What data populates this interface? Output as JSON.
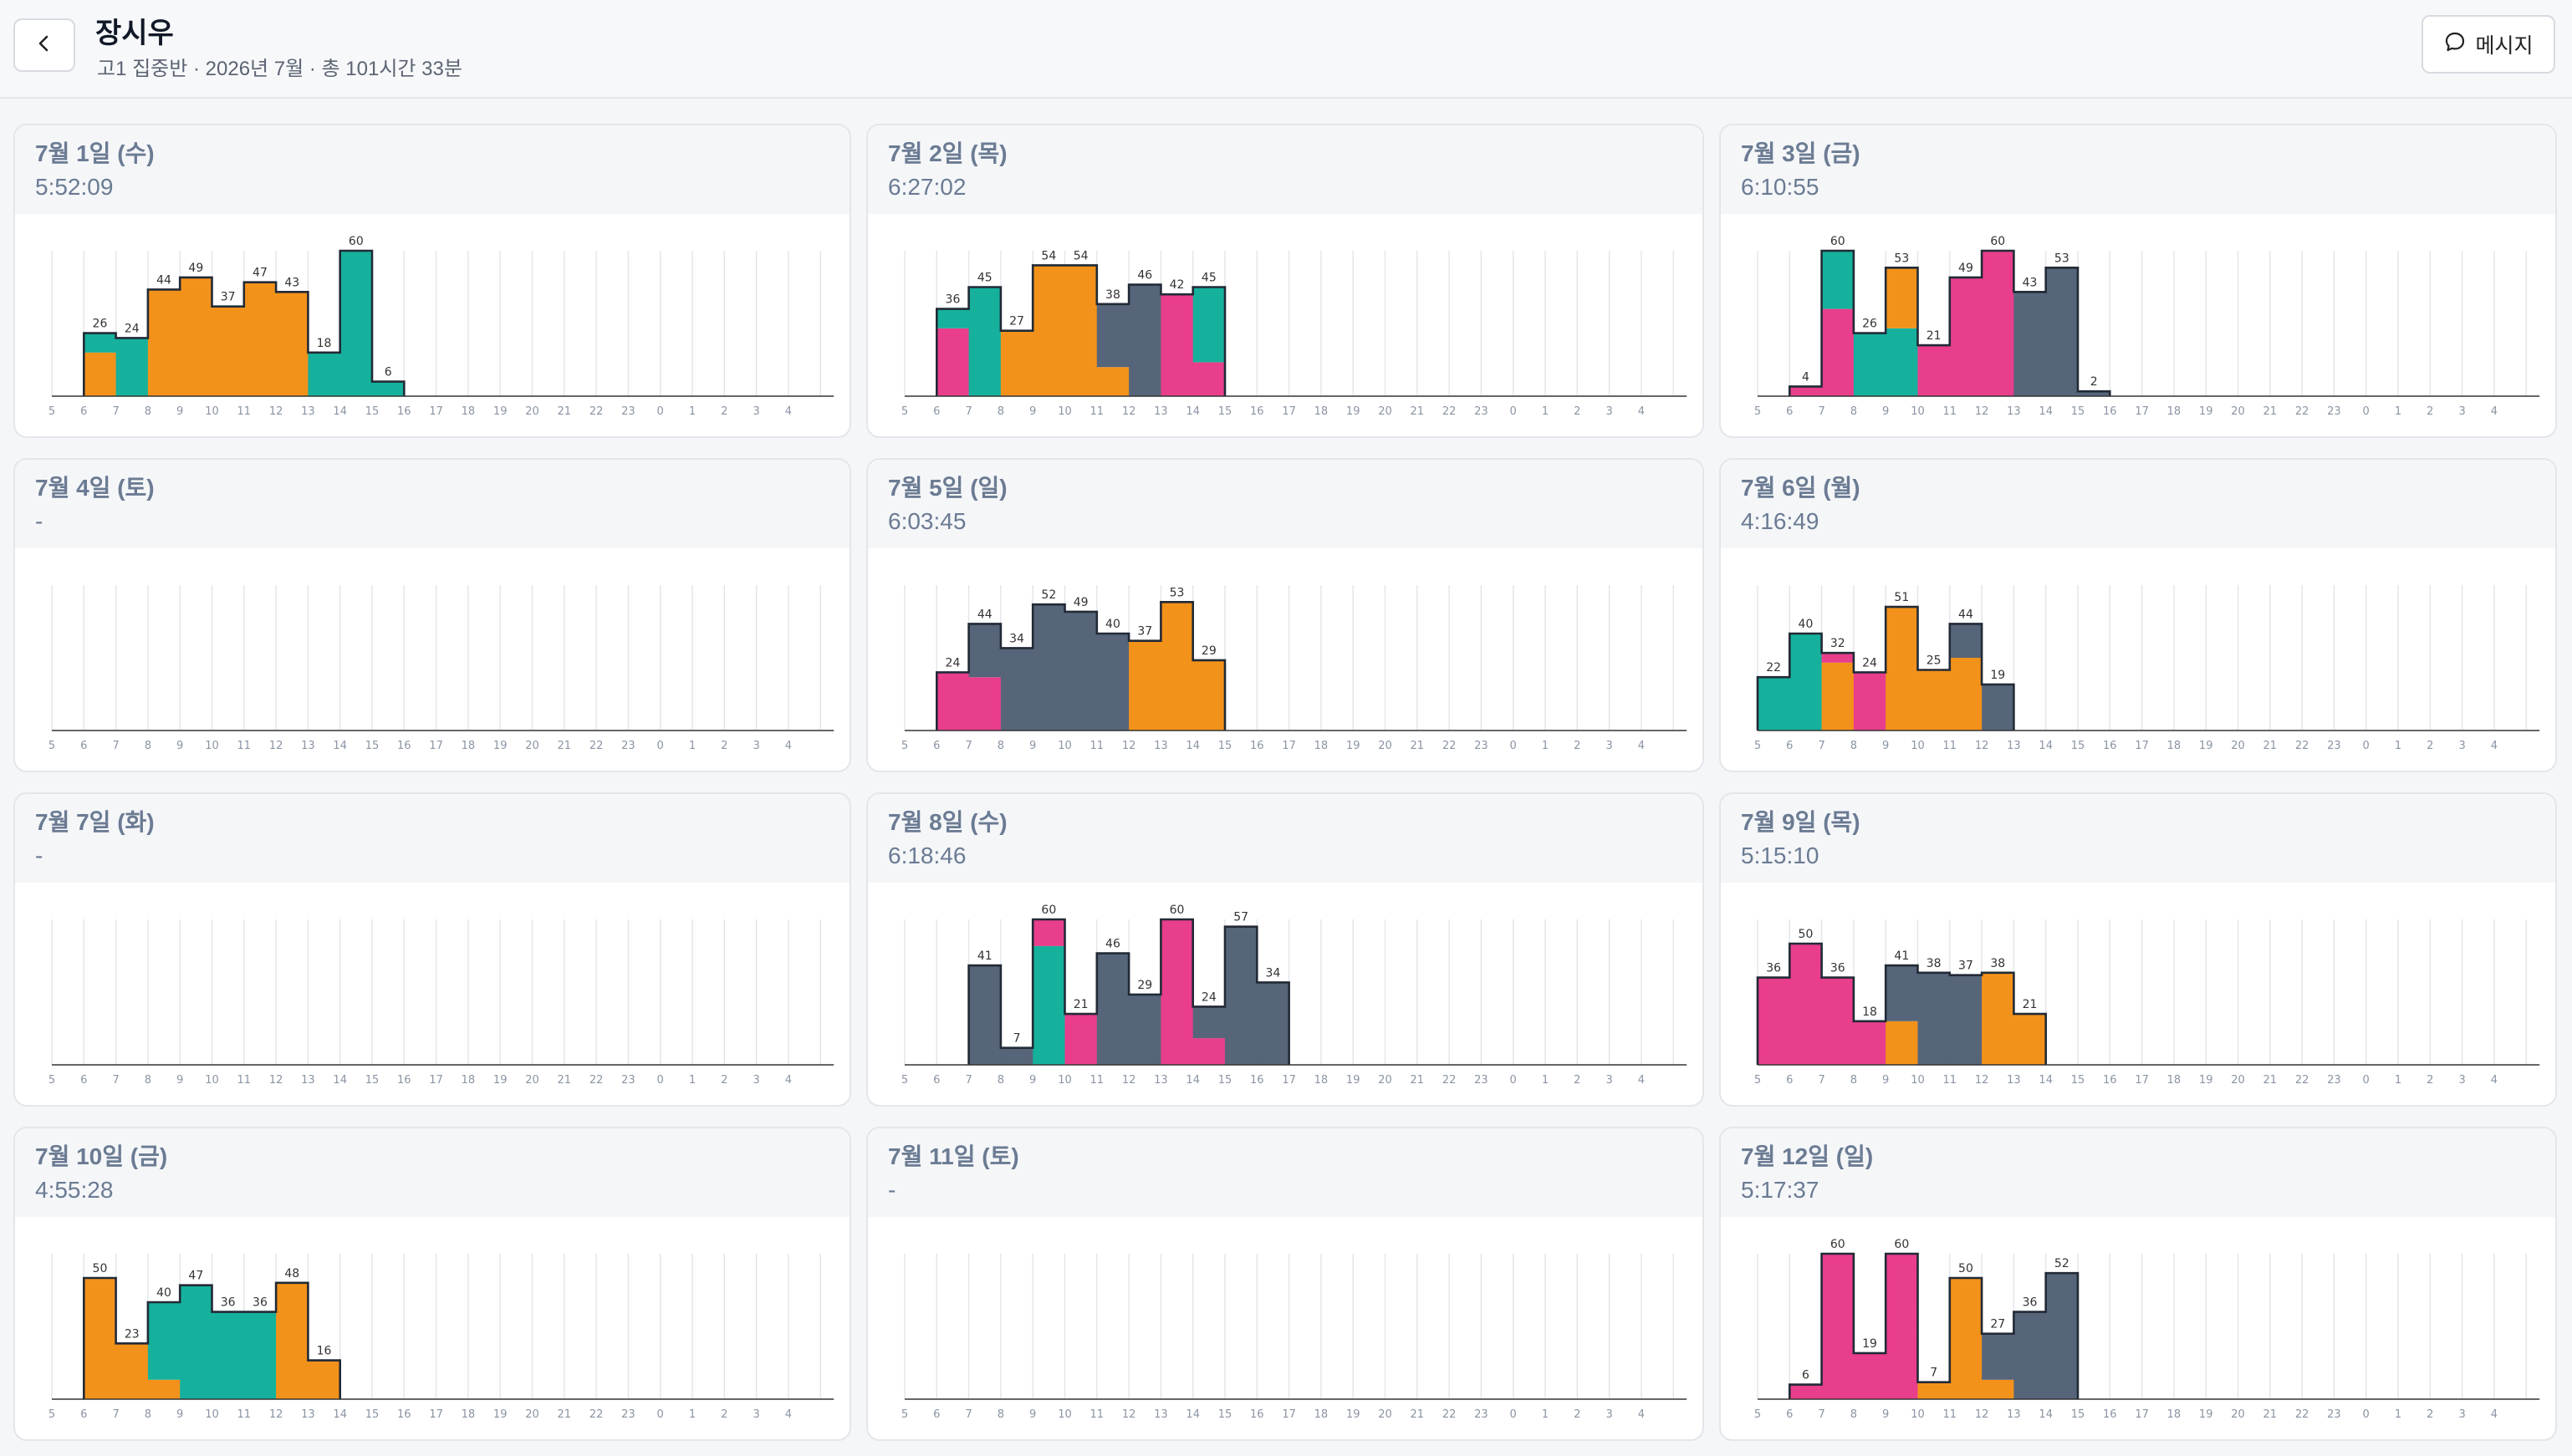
{
  "header": {
    "title": "장시우",
    "subtitle": "고1 집중반 · 2026년 7월 · 총 101시간 33분",
    "message_label": "메시지"
  },
  "colors": {
    "teal": "#15b19c",
    "orange": "#f3921a",
    "pink": "#e83e8c",
    "slate": "#56657a",
    "outline": "#222a36",
    "grid": "#e2e5e9",
    "axis": "#333333"
  },
  "hour_ticks": [
    "5",
    "6",
    "7",
    "8",
    "9",
    "10",
    "11",
    "12",
    "13",
    "14",
    "15",
    "16",
    "17",
    "18",
    "19",
    "20",
    "21",
    "22",
    "23",
    "0",
    "1",
    "2",
    "3",
    "4"
  ],
  "days": [
    {
      "date": "7월 1일 (수)",
      "total": "5:52:09",
      "bars": [
        {
          "h": "6",
          "v": 26,
          "segs": [
            {
              "c": "orange",
              "v": 18
            },
            {
              "c": "teal",
              "v": 8
            }
          ]
        },
        {
          "h": "7",
          "v": 24,
          "segs": [
            {
              "c": "teal",
              "v": 24
            }
          ]
        },
        {
          "h": "8",
          "v": 44,
          "segs": [
            {
              "c": "orange",
              "v": 44
            }
          ]
        },
        {
          "h": "9",
          "v": 49,
          "segs": [
            {
              "c": "orange",
              "v": 49
            }
          ]
        },
        {
          "h": "10",
          "v": 37,
          "segs": [
            {
              "c": "orange",
              "v": 37
            }
          ]
        },
        {
          "h": "11",
          "v": 47,
          "segs": [
            {
              "c": "orange",
              "v": 47
            }
          ]
        },
        {
          "h": "12",
          "v": 43,
          "segs": [
            {
              "c": "orange",
              "v": 43
            }
          ]
        },
        {
          "h": "13",
          "v": 18,
          "segs": [
            {
              "c": "teal",
              "v": 18
            }
          ]
        },
        {
          "h": "14",
          "v": 60,
          "segs": [
            {
              "c": "teal",
              "v": 60
            }
          ]
        },
        {
          "h": "15",
          "v": 6,
          "segs": [
            {
              "c": "teal",
              "v": 6
            }
          ]
        }
      ]
    },
    {
      "date": "7월 2일 (목)",
      "total": "6:27:02",
      "bars": [
        {
          "h": "6",
          "v": 36,
          "segs": [
            {
              "c": "pink",
              "v": 28
            },
            {
              "c": "teal",
              "v": 8
            }
          ]
        },
        {
          "h": "7",
          "v": 45,
          "segs": [
            {
              "c": "teal",
              "v": 45
            }
          ]
        },
        {
          "h": "8",
          "v": 27,
          "segs": [
            {
              "c": "orange",
              "v": 27
            }
          ]
        },
        {
          "h": "9",
          "v": 54,
          "segs": [
            {
              "c": "orange",
              "v": 54
            }
          ]
        },
        {
          "h": "10",
          "v": 54,
          "segs": [
            {
              "c": "orange",
              "v": 54
            }
          ]
        },
        {
          "h": "11",
          "v": 38,
          "segs": [
            {
              "c": "orange",
              "v": 12
            },
            {
              "c": "slate",
              "v": 26
            }
          ]
        },
        {
          "h": "12",
          "v": 46,
          "segs": [
            {
              "c": "slate",
              "v": 46
            }
          ]
        },
        {
          "h": "13",
          "v": 42,
          "segs": [
            {
              "c": "pink",
              "v": 42
            }
          ]
        },
        {
          "h": "14",
          "v": 45,
          "segs": [
            {
              "c": "pink",
              "v": 14
            },
            {
              "c": "teal",
              "v": 31
            }
          ]
        }
      ]
    },
    {
      "date": "7월 3일 (금)",
      "total": "6:10:55",
      "bars": [
        {
          "h": "6",
          "v": 4,
          "segs": [
            {
              "c": "pink",
              "v": 4
            }
          ]
        },
        {
          "h": "7",
          "v": 60,
          "segs": [
            {
              "c": "pink",
              "v": 36
            },
            {
              "c": "teal",
              "v": 24
            }
          ]
        },
        {
          "h": "8",
          "v": 26,
          "segs": [
            {
              "c": "teal",
              "v": 26
            }
          ]
        },
        {
          "h": "9",
          "v": 53,
          "segs": [
            {
              "c": "teal",
              "v": 28
            },
            {
              "c": "orange",
              "v": 25
            }
          ]
        },
        {
          "h": "10",
          "v": 21,
          "segs": [
            {
              "c": "pink",
              "v": 21
            }
          ]
        },
        {
          "h": "11",
          "v": 49,
          "segs": [
            {
              "c": "pink",
              "v": 49
            }
          ]
        },
        {
          "h": "12",
          "v": 60,
          "segs": [
            {
              "c": "pink",
              "v": 60
            }
          ]
        },
        {
          "h": "13",
          "v": 43,
          "segs": [
            {
              "c": "slate",
              "v": 43
            }
          ]
        },
        {
          "h": "14",
          "v": 53,
          "segs": [
            {
              "c": "slate",
              "v": 53
            }
          ]
        },
        {
          "h": "15",
          "v": 2,
          "segs": [
            {
              "c": "slate",
              "v": 2
            }
          ]
        }
      ]
    },
    {
      "date": "7월 4일 (토)",
      "total": "-",
      "bars": []
    },
    {
      "date": "7월 5일 (일)",
      "total": "6:03:45",
      "bars": [
        {
          "h": "6",
          "v": 24,
          "segs": [
            {
              "c": "pink",
              "v": 24
            }
          ]
        },
        {
          "h": "7",
          "v": 44,
          "segs": [
            {
              "c": "pink",
              "v": 22
            },
            {
              "c": "slate",
              "v": 22
            }
          ]
        },
        {
          "h": "8",
          "v": 34,
          "segs": [
            {
              "c": "slate",
              "v": 34
            }
          ]
        },
        {
          "h": "9",
          "v": 52,
          "segs": [
            {
              "c": "slate",
              "v": 52
            }
          ]
        },
        {
          "h": "10",
          "v": 49,
          "segs": [
            {
              "c": "slate",
              "v": 49
            }
          ]
        },
        {
          "h": "11",
          "v": 40,
          "segs": [
            {
              "c": "slate",
              "v": 40
            }
          ]
        },
        {
          "h": "12",
          "v": 37,
          "segs": [
            {
              "c": "orange",
              "v": 37
            }
          ]
        },
        {
          "h": "13",
          "v": 53,
          "segs": [
            {
              "c": "orange",
              "v": 53
            }
          ]
        },
        {
          "h": "14",
          "v": 29,
          "segs": [
            {
              "c": "orange",
              "v": 29
            }
          ]
        }
      ]
    },
    {
      "date": "7월 6일 (월)",
      "total": "4:16:49",
      "bars": [
        {
          "h": "5",
          "v": 22,
          "segs": [
            {
              "c": "teal",
              "v": 22
            }
          ]
        },
        {
          "h": "6",
          "v": 40,
          "segs": [
            {
              "c": "teal",
              "v": 40
            }
          ]
        },
        {
          "h": "7",
          "v": 32,
          "segs": [
            {
              "c": "orange",
              "v": 28
            },
            {
              "c": "pink",
              "v": 4
            }
          ]
        },
        {
          "h": "8",
          "v": 24,
          "segs": [
            {
              "c": "pink",
              "v": 24
            }
          ]
        },
        {
          "h": "9",
          "v": 51,
          "segs": [
            {
              "c": "orange",
              "v": 51
            }
          ]
        },
        {
          "h": "10",
          "v": 25,
          "segs": [
            {
              "c": "orange",
              "v": 25
            }
          ]
        },
        {
          "h": "11",
          "v": 44,
          "segs": [
            {
              "c": "orange",
              "v": 30
            },
            {
              "c": "slate",
              "v": 14
            }
          ]
        },
        {
          "h": "12",
          "v": 19,
          "segs": [
            {
              "c": "slate",
              "v": 19
            }
          ]
        }
      ]
    },
    {
      "date": "7월 7일 (화)",
      "total": "-",
      "bars": []
    },
    {
      "date": "7월 8일 (수)",
      "total": "6:18:46",
      "bars": [
        {
          "h": "7",
          "v": 41,
          "segs": [
            {
              "c": "slate",
              "v": 41
            }
          ]
        },
        {
          "h": "8",
          "v": 7,
          "segs": [
            {
              "c": "slate",
              "v": 7
            }
          ]
        },
        {
          "h": "9",
          "v": 60,
          "segs": [
            {
              "c": "teal",
              "v": 49
            },
            {
              "c": "pink",
              "v": 11
            }
          ]
        },
        {
          "h": "10",
          "v": 21,
          "segs": [
            {
              "c": "pink",
              "v": 21
            }
          ]
        },
        {
          "h": "11",
          "v": 46,
          "segs": [
            {
              "c": "slate",
              "v": 46
            }
          ]
        },
        {
          "h": "12",
          "v": 29,
          "segs": [
            {
              "c": "slate",
              "v": 29
            }
          ]
        },
        {
          "h": "13",
          "v": 60,
          "segs": [
            {
              "c": "pink",
              "v": 60
            }
          ]
        },
        {
          "h": "14",
          "v": 24,
          "segs": [
            {
              "c": "pink",
              "v": 11
            },
            {
              "c": "slate",
              "v": 13
            }
          ]
        },
        {
          "h": "15",
          "v": 57,
          "segs": [
            {
              "c": "slate",
              "v": 57
            }
          ]
        },
        {
          "h": "16",
          "v": 34,
          "segs": [
            {
              "c": "slate",
              "v": 34
            }
          ]
        }
      ]
    },
    {
      "date": "7월 9일 (목)",
      "total": "5:15:10",
      "bars": [
        {
          "h": "5",
          "v": 36,
          "segs": [
            {
              "c": "pink",
              "v": 36
            }
          ]
        },
        {
          "h": "6",
          "v": 50,
          "segs": [
            {
              "c": "pink",
              "v": 50
            }
          ]
        },
        {
          "h": "7",
          "v": 36,
          "segs": [
            {
              "c": "pink",
              "v": 36
            }
          ]
        },
        {
          "h": "8",
          "v": 18,
          "segs": [
            {
              "c": "pink",
              "v": 18
            }
          ]
        },
        {
          "h": "9",
          "v": 41,
          "segs": [
            {
              "c": "orange",
              "v": 18
            },
            {
              "c": "slate",
              "v": 23
            }
          ]
        },
        {
          "h": "10",
          "v": 38,
          "segs": [
            {
              "c": "slate",
              "v": 38
            }
          ]
        },
        {
          "h": "11",
          "v": 37,
          "segs": [
            {
              "c": "slate",
              "v": 37
            }
          ]
        },
        {
          "h": "12",
          "v": 38,
          "segs": [
            {
              "c": "orange",
              "v": 38
            }
          ]
        },
        {
          "h": "13",
          "v": 21,
          "segs": [
            {
              "c": "orange",
              "v": 21
            }
          ]
        }
      ]
    },
    {
      "date": "7월 10일 (금)",
      "total": "4:55:28",
      "bars": [
        {
          "h": "6",
          "v": 50,
          "segs": [
            {
              "c": "orange",
              "v": 50
            }
          ]
        },
        {
          "h": "7",
          "v": 23,
          "segs": [
            {
              "c": "orange",
              "v": 23
            }
          ]
        },
        {
          "h": "8",
          "v": 40,
          "segs": [
            {
              "c": "orange",
              "v": 8
            },
            {
              "c": "teal",
              "v": 32
            }
          ]
        },
        {
          "h": "9",
          "v": 47,
          "segs": [
            {
              "c": "teal",
              "v": 47
            }
          ]
        },
        {
          "h": "10",
          "v": 36,
          "segs": [
            {
              "c": "teal",
              "v": 36
            }
          ]
        },
        {
          "h": "11",
          "v": 36,
          "segs": [
            {
              "c": "teal",
              "v": 36
            }
          ]
        },
        {
          "h": "12",
          "v": 48,
          "segs": [
            {
              "c": "orange",
              "v": 48
            }
          ]
        },
        {
          "h": "13",
          "v": 16,
          "segs": [
            {
              "c": "orange",
              "v": 16
            }
          ]
        }
      ]
    },
    {
      "date": "7월 11일 (토)",
      "total": "-",
      "bars": []
    },
    {
      "date": "7월 12일 (일)",
      "total": "5:17:37",
      "bars": [
        {
          "h": "6",
          "v": 6,
          "segs": [
            {
              "c": "pink",
              "v": 6
            }
          ]
        },
        {
          "h": "7",
          "v": 60,
          "segs": [
            {
              "c": "pink",
              "v": 60
            }
          ]
        },
        {
          "h": "8",
          "v": 19,
          "segs": [
            {
              "c": "pink",
              "v": 19
            }
          ]
        },
        {
          "h": "9",
          "v": 60,
          "segs": [
            {
              "c": "pink",
              "v": 60
            }
          ]
        },
        {
          "h": "10",
          "v": 7,
          "segs": [
            {
              "c": "orange",
              "v": 7
            }
          ]
        },
        {
          "h": "11",
          "v": 50,
          "segs": [
            {
              "c": "orange",
              "v": 50
            }
          ]
        },
        {
          "h": "12",
          "v": 27,
          "segs": [
            {
              "c": "orange",
              "v": 8
            },
            {
              "c": "slate",
              "v": 19
            }
          ]
        },
        {
          "h": "13",
          "v": 36,
          "segs": [
            {
              "c": "slate",
              "v": 36
            }
          ]
        },
        {
          "h": "14",
          "v": 52,
          "segs": [
            {
              "c": "slate",
              "v": 52
            }
          ]
        }
      ]
    }
  ]
}
